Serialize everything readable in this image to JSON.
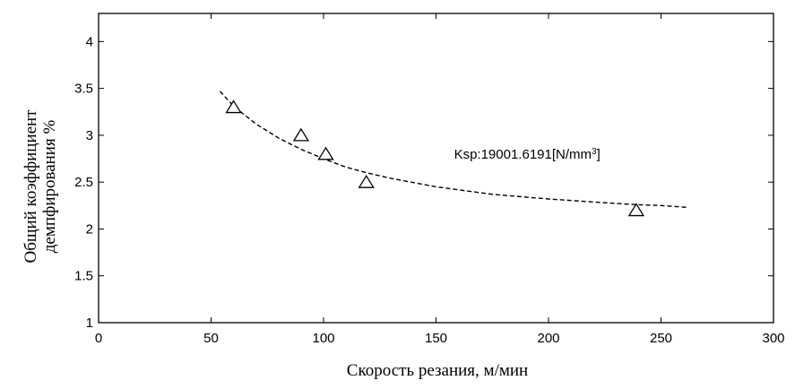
{
  "chart_data": {
    "type": "scatter",
    "xlabel": "Скорость резания, м/мин",
    "ylabel": [
      "Общий коэффициент",
      "демпфирования %"
    ],
    "xlim": [
      0,
      300
    ],
    "ylim": [
      1,
      4.3
    ],
    "xticks": [
      0,
      50,
      100,
      150,
      200,
      250,
      300
    ],
    "yticks": [
      1,
      1.5,
      2,
      2.5,
      3,
      3.5,
      4
    ],
    "grid": false,
    "series": [
      {
        "marker": "triangle",
        "x": [
          60,
          90,
          101,
          119,
          239
        ],
        "y": [
          3.3,
          3.0,
          2.8,
          2.5,
          2.2
        ]
      },
      {
        "style": "dashed",
        "x": [
          54,
          60,
          70,
          80,
          90,
          101,
          110,
          119,
          130,
          150,
          175,
          200,
          225,
          239,
          250,
          262
        ],
        "y": [
          3.47,
          3.31,
          3.12,
          2.97,
          2.85,
          2.74,
          2.66,
          2.6,
          2.54,
          2.45,
          2.37,
          2.32,
          2.28,
          2.26,
          2.25,
          2.23
        ]
      }
    ],
    "annotation": {
      "prefix": "Ksp:19001.6191[N/mm",
      "sup": "3",
      "suffix": "]",
      "x": 158,
      "y": 2.8
    }
  }
}
